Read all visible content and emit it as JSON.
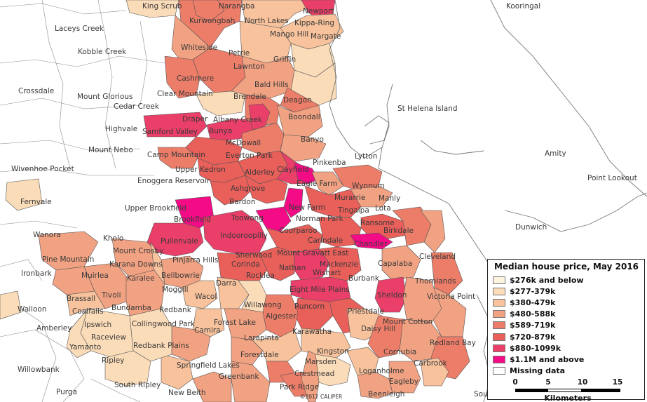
{
  "colors": {
    "c276": "#fdf4de",
    "c277": "#fbdcb9",
    "c380": "#f7c29c",
    "c480": "#f1a282",
    "c589": "#ec7d69",
    "c720": "#e95f5a",
    "c880": "#ea3f68",
    "c1100": "#f40c86",
    "missing": "#ffffff",
    "boundary": "#555555",
    "coast": "#777777"
  },
  "legend": {
    "title": "Median house price, May 2016",
    "items": [
      {
        "label": "$276k and below",
        "color_key": "c276"
      },
      {
        "label": "$277-379k",
        "color_key": "c277"
      },
      {
        "label": "$380-479k",
        "color_key": "c380"
      },
      {
        "label": "$480-588k",
        "color_key": "c480"
      },
      {
        "label": "$589-719k",
        "color_key": "c589"
      },
      {
        "label": "$720-879k",
        "color_key": "c720"
      },
      {
        "label": "$880-1099k",
        "color_key": "c880"
      },
      {
        "label": "$1.1M and above",
        "color_key": "c1100"
      },
      {
        "label": "Missing data",
        "color_key": "missing"
      }
    ]
  },
  "scale": {
    "ticks": [
      "0",
      "5",
      "10",
      "15"
    ],
    "unit": "Kilometers"
  },
  "copyright": "©2012 CALIPER",
  "places": [
    {
      "name": "King Scrub"
    },
    {
      "name": "Narangba"
    },
    {
      "name": "Newport"
    },
    {
      "name": "Kooringal"
    },
    {
      "name": "Kurwongbah"
    },
    {
      "name": "North Lakes"
    },
    {
      "name": "Kippa-Ring"
    },
    {
      "name": "Laceys Creek"
    },
    {
      "name": "Mango Hill"
    },
    {
      "name": "Margate"
    },
    {
      "name": "Kobble Creek"
    },
    {
      "name": "Whiteside"
    },
    {
      "name": "Petrie"
    },
    {
      "name": "Griffin"
    },
    {
      "name": "Lawnton"
    },
    {
      "name": "Cashmere"
    },
    {
      "name": "Bald Hills"
    },
    {
      "name": "Crossdale"
    },
    {
      "name": "Mount Glorious"
    },
    {
      "name": "Clear Mountain"
    },
    {
      "name": "Brendale"
    },
    {
      "name": "Cedar Creek"
    },
    {
      "name": "Deagon"
    },
    {
      "name": "St Helena Island"
    },
    {
      "name": "Draper"
    },
    {
      "name": "Albany Creek"
    },
    {
      "name": "Boondall"
    },
    {
      "name": "Highvale"
    },
    {
      "name": "Samford Valley"
    },
    {
      "name": "Bunya"
    },
    {
      "name": "McDowall"
    },
    {
      "name": "Banyo"
    },
    {
      "name": "Mount Nebo"
    },
    {
      "name": "Camp Mountain"
    },
    {
      "name": "Everton Park"
    },
    {
      "name": "Lytton"
    },
    {
      "name": "Amity"
    },
    {
      "name": "Pinkenba"
    },
    {
      "name": "Wivenhoe Pocket"
    },
    {
      "name": "Upper Kedron"
    },
    {
      "name": "Clayfield"
    },
    {
      "name": "Point Lookout"
    },
    {
      "name": "Alderley"
    },
    {
      "name": "Enoggera Reservoir"
    },
    {
      "name": "Eagle Farm"
    },
    {
      "name": "Wynnum"
    },
    {
      "name": "Fernvale"
    },
    {
      "name": "Ashgrove"
    },
    {
      "name": "Murarrie"
    },
    {
      "name": "Manly"
    },
    {
      "name": "Bardon"
    },
    {
      "name": "New Farm"
    },
    {
      "name": "Tingalpa"
    },
    {
      "name": "Lota"
    },
    {
      "name": "Upper Brookfield"
    },
    {
      "name": "Dunwich"
    },
    {
      "name": "Brookfield"
    },
    {
      "name": "Toowong"
    },
    {
      "name": "Norman Park"
    },
    {
      "name": "Ransome"
    },
    {
      "name": "Wanora"
    },
    {
      "name": "Kholo"
    },
    {
      "name": "Coorparoo"
    },
    {
      "name": "Birkdale"
    },
    {
      "name": "Pullenvale"
    },
    {
      "name": "Indooroopilly"
    },
    {
      "name": "Carindale"
    },
    {
      "name": "Chandler"
    },
    {
      "name": "Mount Crosby"
    },
    {
      "name": "Mount Gravatt East"
    },
    {
      "name": "Cleveland"
    },
    {
      "name": "Sherwood"
    },
    {
      "name": "Pine Mountain"
    },
    {
      "name": "Karana Downs"
    },
    {
      "name": "Pinjarra Hills"
    },
    {
      "name": "Corinda"
    },
    {
      "name": "Mackenzie"
    },
    {
      "name": "Capalaba"
    },
    {
      "name": "Muirlea"
    },
    {
      "name": "Nathan"
    },
    {
      "name": "Wishart"
    },
    {
      "name": "Ironbark"
    },
    {
      "name": "Bellbowrie"
    },
    {
      "name": "Rocklea"
    },
    {
      "name": "Burbank"
    },
    {
      "name": "Thornlands"
    },
    {
      "name": "Karalee"
    },
    {
      "name": "Darra"
    },
    {
      "name": "Moggill"
    },
    {
      "name": "Eight Mile Plains"
    },
    {
      "name": "Brassall"
    },
    {
      "name": "Tivoli"
    },
    {
      "name": "Wacol"
    },
    {
      "name": "Sheldon"
    },
    {
      "name": "Victoria Point"
    },
    {
      "name": "Coalfalls"
    },
    {
      "name": "Willawong"
    },
    {
      "name": "Runcorn"
    },
    {
      "name": "Priestdale"
    },
    {
      "name": "Walloon"
    },
    {
      "name": "Bundamba"
    },
    {
      "name": "Redbank"
    },
    {
      "name": "Ipswich"
    },
    {
      "name": "Collingwood Park"
    },
    {
      "name": "Camira"
    },
    {
      "name": "Forest Lake"
    },
    {
      "name": "Algester"
    },
    {
      "name": "Mount Cotton"
    },
    {
      "name": "Amberley"
    },
    {
      "name": "Raceview"
    },
    {
      "name": "Daisy Hill"
    },
    {
      "name": "Karawatha"
    },
    {
      "name": "Yamanto"
    },
    {
      "name": "Redbank Plains"
    },
    {
      "name": "Larapinta"
    },
    {
      "name": "Redland Bay"
    },
    {
      "name": "Willowbank"
    },
    {
      "name": "Kingston"
    },
    {
      "name": "Cornubia"
    },
    {
      "name": "Ripley"
    },
    {
      "name": "Forestdale"
    },
    {
      "name": "Springfield Lakes"
    },
    {
      "name": "Marsden"
    },
    {
      "name": "Carbrook"
    },
    {
      "name": "Greenbank"
    },
    {
      "name": "Crestmead"
    },
    {
      "name": "Loganholme"
    },
    {
      "name": "Eagleby"
    },
    {
      "name": "South Ripley"
    },
    {
      "name": "Park Ridge"
    },
    {
      "name": "Purga"
    },
    {
      "name": "New Beith"
    },
    {
      "name": "Beenleigh"
    },
    {
      "name": "Southern"
    }
  ]
}
